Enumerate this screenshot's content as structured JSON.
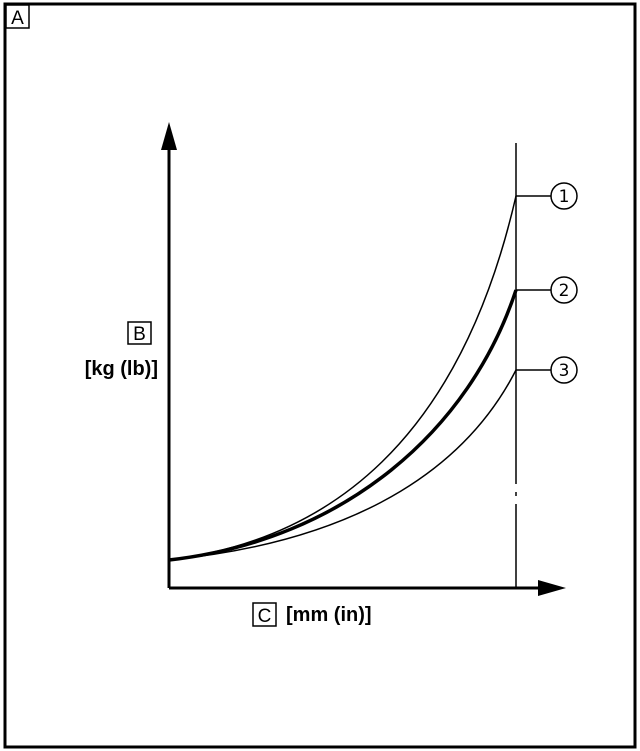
{
  "corner_label": "A",
  "y_axis": {
    "letter": "B",
    "unit": "[kg (lb)]"
  },
  "x_axis": {
    "letter": "C",
    "unit": "[mm (in)]"
  },
  "curves": [
    {
      "label": "1"
    },
    {
      "label": "2"
    },
    {
      "label": "3"
    }
  ]
}
